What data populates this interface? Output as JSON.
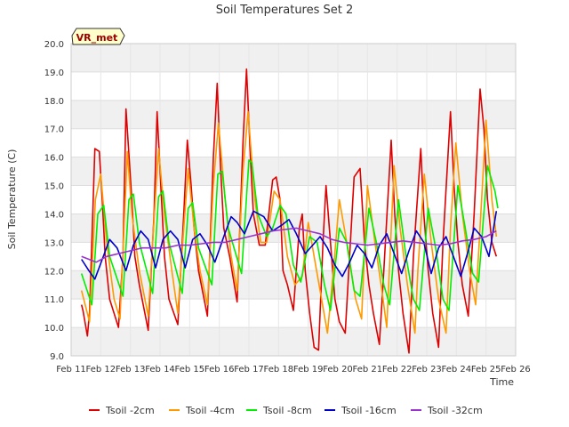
{
  "chart_data": {
    "type": "line",
    "title": "Soil Temperatures Set 2",
    "xlabel": "Time",
    "ylabel": "Soil Temperature (C)",
    "ylim": [
      9.0,
      20.0
    ],
    "xlim": [
      0,
      15
    ],
    "x_unit": "days from Feb 11",
    "yticks": [
      "9.0",
      "10.0",
      "11.0",
      "12.0",
      "13.0",
      "14.0",
      "15.0",
      "16.0",
      "17.0",
      "18.0",
      "19.0",
      "20.0"
    ],
    "xticks": [
      "Feb 11",
      "Feb 12",
      "Feb 13",
      "Feb 14",
      "Feb 15",
      "Feb 16",
      "Feb 17",
      "Feb 18",
      "Feb 19",
      "Feb 20",
      "Feb 21",
      "Feb 22",
      "Feb 23",
      "Feb 24",
      "Feb 25",
      "Feb 26"
    ],
    "grid": true,
    "legend_position": "bottom",
    "annotation": "VR_met",
    "series": [
      {
        "name": "Tsoil -2cm",
        "color": "#dd0000",
        "x": [
          0.35,
          0.4,
          0.55,
          0.62,
          0.8,
          0.95,
          1.05,
          1.15,
          1.3,
          1.6,
          1.75,
          1.85,
          2.05,
          2.15,
          2.3,
          2.6,
          2.8,
          2.9,
          3.05,
          3.15,
          3.3,
          3.6,
          3.8,
          3.92,
          4.05,
          4.15,
          4.3,
          4.6,
          4.8,
          4.93,
          5.05,
          5.15,
          5.35,
          5.6,
          5.8,
          5.92,
          6.05,
          6.15,
          6.35,
          6.55,
          6.8,
          6.92,
          7.05,
          7.15,
          7.3,
          7.5,
          7.7,
          7.8,
          7.9,
          8.05,
          8.2,
          8.35,
          8.5,
          8.6,
          8.75,
          8.9,
          9.05,
          9.25,
          9.55,
          9.75,
          9.9,
          10.05,
          10.2,
          10.4,
          10.55,
          10.8,
          10.92,
          11.05,
          11.2,
          11.4,
          11.55,
          11.8,
          11.9,
          12.05,
          12.2,
          12.4,
          12.55,
          12.8,
          12.92,
          13.05,
          13.2,
          13.4,
          13.6,
          13.8,
          13.93,
          14.05,
          14.2,
          14.35
        ],
        "values": [
          10.8,
          10.6,
          9.7,
          10.5,
          16.3,
          16.2,
          14.5,
          12.5,
          11.0,
          10.0,
          12.5,
          17.7,
          14.5,
          12.5,
          11.5,
          9.9,
          14.0,
          17.6,
          14.5,
          12.5,
          11.0,
          10.1,
          14.0,
          16.6,
          15.0,
          13.5,
          12.0,
          10.4,
          16.0,
          18.6,
          15.5,
          13.5,
          12.5,
          10.9,
          16.5,
          19.1,
          16.0,
          14.0,
          12.9,
          12.9,
          15.2,
          15.3,
          14.5,
          12.0,
          11.5,
          10.6,
          13.5,
          14.0,
          12.0,
          10.5,
          9.3,
          9.2,
          13.0,
          15.0,
          13.0,
          11.0,
          10.2,
          9.8,
          15.3,
          15.6,
          13.0,
          11.5,
          10.5,
          9.4,
          12.0,
          16.6,
          14.0,
          12.0,
          10.5,
          9.1,
          12.5,
          16.3,
          14.0,
          12.0,
          10.5,
          9.3,
          13.0,
          17.6,
          15.0,
          13.0,
          11.5,
          10.4,
          14.0,
          18.4,
          17.0,
          14.5,
          13.0,
          12.5
        ]
      },
      {
        "name": "Tsoil -4cm",
        "color": "#ff9900",
        "x": [
          0.35,
          0.62,
          0.82,
          1.0,
          1.2,
          1.45,
          1.65,
          1.9,
          2.05,
          2.3,
          2.6,
          2.75,
          2.95,
          3.15,
          3.4,
          3.6,
          3.8,
          3.95,
          4.15,
          4.35,
          4.6,
          4.8,
          4.97,
          5.2,
          5.4,
          5.6,
          5.8,
          5.97,
          6.2,
          6.4,
          6.6,
          6.85,
          7.05,
          7.3,
          7.55,
          7.8,
          8.0,
          8.2,
          8.45,
          8.65,
          8.85,
          9.05,
          9.3,
          9.6,
          9.8,
          10.0,
          10.25,
          10.5,
          10.65,
          10.9,
          11.1,
          11.35,
          11.6,
          11.7,
          11.92,
          12.15,
          12.4,
          12.65,
          12.8,
          12.98,
          13.2,
          13.45,
          13.65,
          13.85,
          14.0,
          14.2,
          14.35
        ],
        "values": [
          11.3,
          10.2,
          14.5,
          15.4,
          13.0,
          11.0,
          10.3,
          16.2,
          14.0,
          12.0,
          10.4,
          13.0,
          16.3,
          14.0,
          12.0,
          10.5,
          13.5,
          15.6,
          13.5,
          12.0,
          10.8,
          15.0,
          17.2,
          14.5,
          12.5,
          11.3,
          15.5,
          17.6,
          14.5,
          13.0,
          13.0,
          14.8,
          14.5,
          12.5,
          11.5,
          11.8,
          13.7,
          12.5,
          11.0,
          9.8,
          12.0,
          14.5,
          13.0,
          11.0,
          10.3,
          15.0,
          13.0,
          11.2,
          10.0,
          15.7,
          13.5,
          11.5,
          9.8,
          12.0,
          15.4,
          13.0,
          11.0,
          9.8,
          13.5,
          16.5,
          14.0,
          12.0,
          10.8,
          14.5,
          17.3,
          14.5,
          13.2
        ]
      },
      {
        "name": "Tsoil -8cm",
        "color": "#00ee00",
        "x": [
          0.35,
          0.7,
          0.9,
          1.1,
          1.3,
          1.75,
          1.95,
          2.1,
          2.3,
          2.75,
          2.95,
          3.1,
          3.3,
          3.75,
          3.95,
          4.1,
          4.3,
          4.75,
          4.95,
          5.1,
          5.3,
          5.75,
          6.0,
          6.1,
          6.3,
          6.6,
          6.8,
          7.05,
          7.25,
          7.5,
          7.75,
          8.05,
          8.3,
          8.55,
          8.75,
          9.05,
          9.3,
          9.55,
          9.75,
          10.05,
          10.3,
          10.55,
          10.75,
          11.05,
          11.3,
          11.55,
          11.75,
          12.05,
          12.3,
          12.55,
          12.75,
          13.05,
          13.3,
          13.55,
          13.75,
          14.05,
          14.3,
          14.4
        ],
        "values": [
          11.9,
          10.8,
          14.0,
          14.3,
          12.5,
          11.1,
          14.5,
          14.7,
          13.0,
          11.2,
          14.6,
          14.8,
          13.0,
          11.2,
          14.2,
          14.4,
          12.8,
          11.5,
          15.4,
          15.5,
          13.5,
          11.9,
          15.9,
          15.8,
          14.0,
          13.2,
          13.5,
          14.3,
          14.0,
          12.2,
          11.6,
          13.2,
          13.0,
          11.5,
          10.6,
          13.5,
          13.0,
          11.3,
          11.1,
          14.2,
          13.0,
          11.5,
          10.8,
          14.5,
          12.5,
          11.0,
          10.6,
          14.2,
          12.8,
          11.0,
          10.6,
          15.0,
          13.5,
          11.9,
          11.6,
          15.7,
          14.8,
          14.2
        ]
      },
      {
        "name": "Tsoil -16cm",
        "color": "#0000cc",
        "x": [
          0.35,
          0.6,
          0.8,
          1.05,
          1.3,
          1.55,
          1.85,
          2.1,
          2.35,
          2.6,
          2.85,
          3.1,
          3.35,
          3.6,
          3.85,
          4.1,
          4.35,
          4.6,
          4.85,
          5.15,
          5.4,
          5.6,
          5.85,
          6.15,
          6.5,
          6.8,
          7.1,
          7.35,
          7.6,
          7.9,
          8.15,
          8.4,
          8.65,
          8.9,
          9.15,
          9.4,
          9.65,
          9.9,
          10.15,
          10.4,
          10.65,
          10.9,
          11.15,
          11.4,
          11.65,
          11.9,
          12.15,
          12.4,
          12.65,
          12.9,
          13.15,
          13.4,
          13.6,
          13.85,
          14.1,
          14.35
        ],
        "values": [
          12.4,
          12.0,
          11.7,
          12.4,
          13.1,
          12.8,
          12.0,
          12.9,
          13.4,
          13.1,
          12.1,
          13.1,
          13.4,
          13.1,
          12.1,
          13.1,
          13.3,
          12.9,
          12.3,
          13.2,
          13.9,
          13.7,
          13.3,
          14.1,
          13.9,
          13.4,
          13.6,
          13.8,
          13.3,
          12.6,
          12.9,
          13.2,
          12.8,
          12.2,
          11.8,
          12.3,
          12.9,
          12.6,
          12.1,
          12.9,
          13.3,
          12.6,
          11.9,
          12.7,
          13.4,
          13.0,
          11.9,
          12.8,
          13.2,
          12.5,
          11.8,
          12.7,
          13.5,
          13.2,
          12.5,
          14.1
        ]
      },
      {
        "name": "Tsoil -32cm",
        "color": "#9933cc",
        "x": [
          0.35,
          0.6,
          0.85,
          1.2,
          1.6,
          2.0,
          2.4,
          2.8,
          3.2,
          3.6,
          4.0,
          4.4,
          4.8,
          5.2,
          5.6,
          6.0,
          6.4,
          6.8,
          7.2,
          7.6,
          8.0,
          8.4,
          8.8,
          9.2,
          9.6,
          10.0,
          10.4,
          10.8,
          11.2,
          11.6,
          12.0,
          12.4,
          12.8,
          13.2,
          13.6,
          14.0,
          14.35
        ],
        "values": [
          12.5,
          12.4,
          12.3,
          12.5,
          12.6,
          12.7,
          12.8,
          12.8,
          12.8,
          12.9,
          12.9,
          12.95,
          13.0,
          13.0,
          13.1,
          13.2,
          13.3,
          13.4,
          13.45,
          13.5,
          13.4,
          13.3,
          13.1,
          13.0,
          12.95,
          12.9,
          12.95,
          13.0,
          13.05,
          13.0,
          12.95,
          12.9,
          12.95,
          13.05,
          13.1,
          13.2,
          13.4
        ]
      }
    ]
  }
}
